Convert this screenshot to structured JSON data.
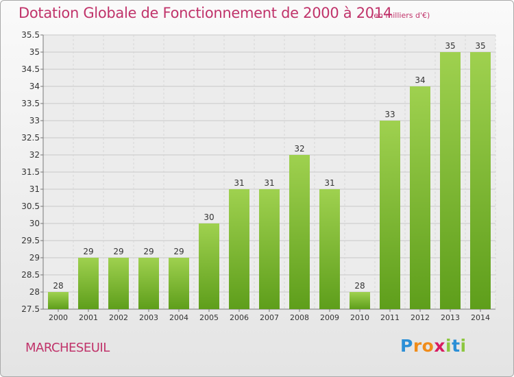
{
  "header": {
    "title": "Dotation Globale de Fonctionnement de 2000 à 2014",
    "subtitle": "(en milliers d'€)"
  },
  "footer": {
    "commune": "MARCHESEUIL",
    "brand": {
      "letters": [
        "P",
        "r",
        "o",
        "x",
        "i",
        "t",
        "i"
      ],
      "colors": [
        "#2b8fd6",
        "#f08c1a",
        "#f08c1a",
        "#d81b60",
        "#8cc63f",
        "#2b8fd6",
        "#8cc63f"
      ]
    }
  },
  "chart_data": {
    "type": "bar",
    "title": "Dotation Globale de Fonctionnement de 2000 à 2014",
    "subtitle": "(en milliers d'€)",
    "categories": [
      "2000",
      "2001",
      "2002",
      "2003",
      "2004",
      "2005",
      "2006",
      "2007",
      "2008",
      "2009",
      "2010",
      "2011",
      "2012",
      "2013",
      "2014"
    ],
    "values": [
      28,
      29,
      29,
      29,
      29,
      30,
      31,
      31,
      32,
      31,
      28,
      33,
      34,
      35,
      35
    ],
    "data_labels": [
      "28",
      "29",
      "29",
      "29",
      "29",
      "30",
      "31",
      "31",
      "32",
      "31",
      "28",
      "33",
      "34",
      "35",
      "35"
    ],
    "ylim": [
      27.5,
      35.5
    ],
    "yticks": [
      "27.5",
      "28",
      "28.5",
      "29",
      "29.5",
      "30",
      "30.5",
      "31",
      "31.5",
      "32",
      "32.5",
      "33",
      "33.5",
      "34",
      "34.5",
      "35",
      "35.5"
    ],
    "grid": true,
    "bar_color": "#8cc63f",
    "bar_color_dark": "#5e9e1b"
  }
}
